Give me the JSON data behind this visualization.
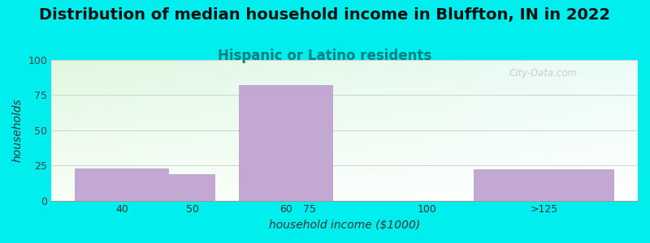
{
  "title": "Distribution of median household income in Bluffton, IN in 2022",
  "subtitle": "Hispanic or Latino residents",
  "xlabel": "household income ($1000)",
  "ylabel": "households",
  "background_color": "#00EEEE",
  "bar_color": "#C4A8D4",
  "yticks": [
    0,
    25,
    50,
    75,
    100
  ],
  "ylim": [
    0,
    100
  ],
  "xtick_labels": [
    "40",
    "50",
    "60",
    "75",
    "100",
    ">125"
  ],
  "bar_lefts": [
    25,
    45,
    60,
    85,
    110
  ],
  "bar_widths": [
    20,
    10,
    20,
    20,
    30
  ],
  "bar_heights": [
    23,
    19,
    82,
    0,
    22
  ],
  "watermark": "City-Data.com",
  "title_fontsize": 14,
  "subtitle_fontsize": 12,
  "subtitle_color": "#008080",
  "axis_label_fontsize": 10,
  "xlim_left": 20,
  "xlim_right": 145
}
